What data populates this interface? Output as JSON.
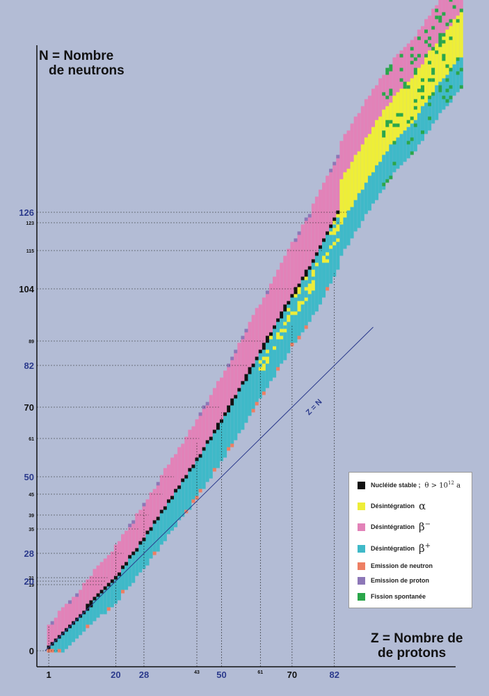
{
  "axes": {
    "y_label_line1": "N = Nombre",
    "y_label_line2": "de neutrons",
    "x_label_line1": "Z = Nombre de",
    "x_label_line2": "de protons",
    "zn_label": "Z = N"
  },
  "legend": {
    "stable": "Nucléide stable ;",
    "stable_condition": "θ > 10",
    "stable_exponent": "12",
    "stable_unit": "a",
    "alpha": "Désintégration",
    "alpha_symbol": "α",
    "beta_minus": "Désintégration",
    "beta_minus_symbol": "β",
    "beta_minus_sign": "−",
    "beta_plus": "Désintégration",
    "beta_plus_symbol": "β",
    "beta_plus_sign": "+",
    "neutron": "Emission de neutron",
    "proton": "Emission de proton",
    "fission": "Fission spontanée"
  },
  "colors": {
    "background": "#b3bcd5",
    "stable": "#111111",
    "alpha": "#eeee38",
    "beta_minus": "#e282b8",
    "beta_plus": "#3fb9c8",
    "neutron_emission": "#ee7f63",
    "proton_emission": "#8d77b7",
    "fission": "#2aa64a",
    "magic_tick": "#2b3a8c"
  },
  "chart_data": {
    "type": "heatmap",
    "description_axes": "x = Z (protons), y = N (neutrons)",
    "xlim": [
      0,
      120
    ],
    "ylim": [
      0,
      180
    ],
    "x_ticks": [
      {
        "value": 1,
        "label": "1",
        "magic": false,
        "size": "big"
      },
      {
        "value": 20,
        "label": "20",
        "magic": true,
        "size": "big"
      },
      {
        "value": 28,
        "label": "28",
        "magic": true,
        "size": "big"
      },
      {
        "value": 43,
        "label": "43",
        "magic": false,
        "size": "small"
      },
      {
        "value": 50,
        "label": "50",
        "magic": true,
        "size": "big"
      },
      {
        "value": 61,
        "label": "61",
        "magic": false,
        "size": "small"
      },
      {
        "value": 70,
        "label": "70",
        "magic": false,
        "size": "big"
      },
      {
        "value": 82,
        "label": "82",
        "magic": true,
        "size": "big"
      }
    ],
    "y_ticks": [
      {
        "value": 0,
        "label": "0",
        "magic": false,
        "size": "big"
      },
      {
        "value": 19,
        "label": "19",
        "magic": false,
        "size": "small"
      },
      {
        "value": 20,
        "label": "20",
        "magic": true,
        "size": "big"
      },
      {
        "value": 21,
        "label": "21",
        "magic": false,
        "size": "small"
      },
      {
        "value": 28,
        "label": "28",
        "magic": true,
        "size": "big"
      },
      {
        "value": 35,
        "label": "35",
        "magic": false,
        "size": "small"
      },
      {
        "value": 39,
        "label": "39",
        "magic": false,
        "size": "small"
      },
      {
        "value": 45,
        "label": "45",
        "magic": false,
        "size": "small"
      },
      {
        "value": 50,
        "label": "50",
        "magic": true,
        "size": "big"
      },
      {
        "value": 61,
        "label": "61",
        "magic": false,
        "size": "small"
      },
      {
        "value": 70,
        "label": "70",
        "magic": false,
        "size": "big"
      },
      {
        "value": 82,
        "label": "82",
        "magic": true,
        "size": "big"
      },
      {
        "value": 89,
        "label": "89",
        "magic": false,
        "size": "small"
      },
      {
        "value": 104,
        "label": "104",
        "magic": false,
        "size": "big"
      },
      {
        "value": 115,
        "label": "115",
        "magic": false,
        "size": "small"
      },
      {
        "value": 123,
        "label": "123",
        "magic": false,
        "size": "small"
      },
      {
        "value": 126,
        "label": "126",
        "magic": true,
        "size": "big"
      }
    ],
    "zn_line": {
      "x": [
        0,
        93
      ],
      "y": [
        0,
        93
      ]
    },
    "stable_valley": {
      "Z": [
        1,
        5,
        10,
        15,
        20,
        25,
        30,
        35,
        40,
        45,
        50,
        55,
        60,
        65,
        70,
        75,
        80,
        83
      ],
      "N": [
        1,
        5,
        10,
        16,
        21,
        28,
        35,
        43,
        50,
        58,
        66,
        75,
        84,
        93,
        102,
        110,
        120,
        126
      ]
    },
    "region_widths": {
      "beta_minus_width": [
        4,
        14
      ],
      "beta_plus_width": [
        2,
        14
      ]
    },
    "heavy_extension": {
      "Z": [
        84,
        90,
        95,
        100,
        105,
        110,
        118
      ],
      "N": [
        130,
        140,
        148,
        155,
        160,
        168,
        178
      ]
    }
  }
}
